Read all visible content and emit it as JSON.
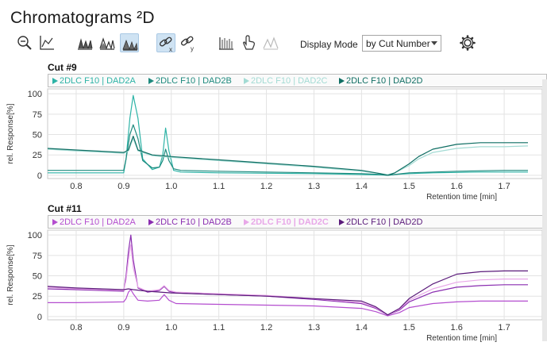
{
  "window": {
    "title": "Chromatograms ²D"
  },
  "toolbar": {
    "buttons": [
      {
        "name": "zoom-out-icon"
      },
      {
        "name": "axis-reset-icon"
      },
      {
        "name": "overlay-peaks-icon"
      },
      {
        "name": "stack-peaks-icon"
      },
      {
        "name": "filled-peaks-icon"
      },
      {
        "name": "link-x-icon"
      },
      {
        "name": "link-y-icon"
      },
      {
        "name": "ruler-icon"
      },
      {
        "name": "hand-pointer-icon"
      },
      {
        "name": "peak-label-icon"
      },
      {
        "name": "gear-icon"
      }
    ],
    "display_mode_label": "Display Mode",
    "display_mode_value": "by Cut Number"
  },
  "chart_data": [
    {
      "type": "line",
      "title": "Cut #9",
      "xlabel": "Retention time [min]",
      "ylabel": "rel. Response[%]",
      "xlim": [
        0.74,
        1.78
      ],
      "ylim": [
        -4,
        106
      ],
      "xticks": [
        "0.8",
        "0.9",
        "1.0",
        "1.1",
        "1.2",
        "1.3",
        "1.4",
        "1.5",
        "1.6",
        "1.7"
      ],
      "yticks": [
        "0",
        "25",
        "50",
        "75",
        "100"
      ],
      "grid": true,
      "legend": "top",
      "series": [
        {
          "name": "2DLC F10 | DAD2A",
          "color": "#2db3a6",
          "x": [
            0.74,
            0.9,
            0.905,
            0.913,
            0.92,
            0.93,
            0.94,
            0.96,
            0.975,
            0.982,
            0.988,
            0.995,
            1.005,
            1.02,
            1.1,
            1.2,
            1.3,
            1.4,
            1.44,
            1.455,
            1.47,
            1.5,
            1.55,
            1.6,
            1.65,
            1.7,
            1.75
          ],
          "y": [
            3,
            3,
            20,
            70,
            98,
            70,
            20,
            7,
            10,
            25,
            58,
            30,
            6,
            4,
            3,
            2.5,
            2,
            1,
            0.5,
            0,
            1,
            2,
            3,
            3.5,
            4,
            4,
            4
          ]
        },
        {
          "name": "2DLC F10 | DAD2B",
          "color": "#1e8a7e",
          "x": [
            0.74,
            0.9,
            0.905,
            0.913,
            0.92,
            0.93,
            0.94,
            0.96,
            0.975,
            0.982,
            0.988,
            0.995,
            1.005,
            1.02,
            1.1,
            1.2,
            1.3,
            1.4,
            1.44,
            1.455,
            1.47,
            1.5,
            1.55,
            1.6,
            1.65,
            1.7,
            1.75
          ],
          "y": [
            6,
            6,
            20,
            50,
            62,
            45,
            18,
            9,
            10,
            18,
            32,
            18,
            8,
            6,
            5,
            4,
            3,
            2,
            1,
            0,
            1,
            3,
            4,
            5,
            5.5,
            6,
            6
          ]
        },
        {
          "name": "2DLC F10 | DAD2C",
          "color": "#a3dbd4",
          "x": [
            0.74,
            0.8,
            0.9,
            0.91,
            0.915,
            0.92,
            0.93,
            0.96,
            1.0,
            1.1,
            1.2,
            1.3,
            1.4,
            1.44,
            1.455,
            1.47,
            1.5,
            1.52,
            1.55,
            1.6,
            1.65,
            1.7,
            1.75
          ],
          "y": [
            32,
            30,
            27,
            30,
            38,
            45,
            30,
            24,
            22,
            18,
            14,
            10,
            5,
            2,
            1,
            3,
            12,
            20,
            28,
            33,
            35,
            35,
            36
          ]
        },
        {
          "name": "2DLC F10 | DAD2D",
          "color": "#0f6e63",
          "x": [
            0.74,
            0.8,
            0.9,
            0.91,
            0.915,
            0.92,
            0.93,
            0.96,
            1.0,
            1.1,
            1.2,
            1.3,
            1.4,
            1.44,
            1.455,
            1.47,
            1.5,
            1.52,
            1.55,
            1.6,
            1.65,
            1.7,
            1.75
          ],
          "y": [
            33,
            31,
            28,
            31,
            40,
            48,
            31,
            25,
            23,
            19,
            15,
            11,
            6,
            2,
            0,
            3,
            14,
            23,
            32,
            38,
            40,
            40,
            40
          ]
        }
      ]
    },
    {
      "type": "line",
      "title": "Cut #11",
      "xlabel": "Retention time [min]",
      "ylabel": "rel. Response[%]",
      "xlim": [
        0.74,
        1.78
      ],
      "ylim": [
        -4,
        106
      ],
      "xticks": [
        "0.8",
        "0.9",
        "1.0",
        "1.1",
        "1.2",
        "1.3",
        "1.4",
        "1.5",
        "1.6",
        "1.7"
      ],
      "yticks": [
        "0",
        "25",
        "50",
        "75",
        "100"
      ],
      "grid": true,
      "legend": "top",
      "series": [
        {
          "name": "2DLC F10 | DAD2A",
          "color": "#b44dcf",
          "x": [
            0.74,
            0.8,
            0.9,
            0.905,
            0.91,
            0.915,
            0.92,
            0.93,
            0.95,
            0.975,
            0.985,
            0.995,
            1.01,
            1.1,
            1.2,
            1.3,
            1.4,
            1.43,
            1.455,
            1.48,
            1.5,
            1.55,
            1.6,
            1.65,
            1.7,
            1.75
          ],
          "y": [
            17,
            17,
            18,
            22,
            30,
            33,
            28,
            20,
            19,
            20,
            27,
            20,
            16,
            15,
            14,
            13,
            10,
            6,
            1,
            5,
            11,
            16,
            18,
            19,
            19,
            19
          ]
        },
        {
          "name": "2DLC F10 | DAD2B",
          "color": "#8a2db0",
          "x": [
            0.74,
            0.8,
            0.9,
            0.905,
            0.91,
            0.915,
            0.92,
            0.93,
            0.95,
            0.975,
            0.985,
            0.995,
            1.01,
            1.1,
            1.2,
            1.3,
            1.4,
            1.43,
            1.455,
            1.48,
            1.5,
            1.55,
            1.6,
            1.65,
            1.7,
            1.75
          ],
          "y": [
            34,
            33,
            31,
            50,
            80,
            100,
            70,
            35,
            30,
            32,
            37,
            31,
            29,
            27,
            25,
            21,
            16,
            10,
            2,
            8,
            18,
            30,
            36,
            38,
            39,
            39
          ]
        },
        {
          "name": "2DLC F10 | DAD2C",
          "color": "#e8a8e8",
          "x": [
            0.74,
            0.8,
            0.9,
            0.905,
            0.91,
            0.915,
            0.92,
            0.93,
            0.95,
            0.975,
            0.985,
            0.995,
            1.01,
            1.1,
            1.2,
            1.3,
            1.4,
            1.43,
            1.455,
            1.48,
            1.5,
            1.55,
            1.6,
            1.65,
            1.7,
            1.75
          ],
          "y": [
            36,
            34,
            32,
            45,
            70,
            88,
            60,
            36,
            31,
            33,
            38,
            32,
            30,
            28,
            26,
            22,
            17,
            11,
            2,
            9,
            20,
            34,
            42,
            45,
            46,
            46
          ]
        },
        {
          "name": "2DLC F10 | DAD2D",
          "color": "#5a1a7a",
          "x": [
            0.74,
            0.8,
            0.9,
            0.91,
            0.92,
            0.95,
            1.0,
            1.1,
            1.2,
            1.3,
            1.4,
            1.43,
            1.455,
            1.48,
            1.5,
            1.55,
            1.6,
            1.65,
            1.7,
            1.75
          ],
          "y": [
            37,
            35,
            33,
            34,
            33,
            31,
            29,
            27,
            25,
            22,
            19,
            12,
            2,
            10,
            22,
            40,
            52,
            55,
            56,
            56
          ]
        }
      ]
    }
  ]
}
